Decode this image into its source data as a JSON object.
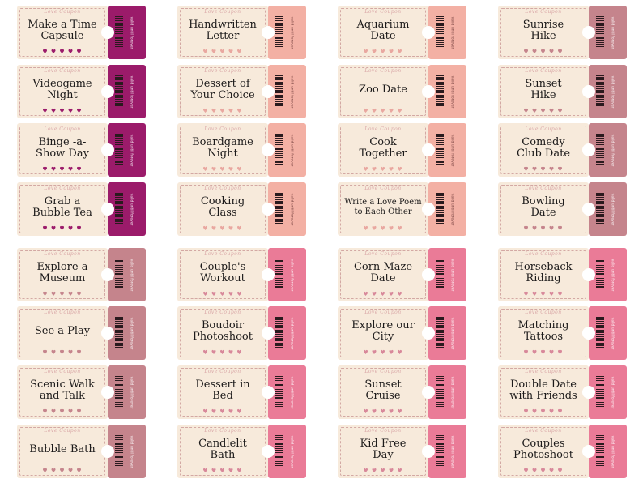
{
  "brand_text": "Love Coupon",
  "valid_text": "valid until forever",
  "hearts_text": "♥ ♥ ♥ ♥ ♥",
  "colors": {
    "magenta": "#9b1b6a",
    "salmon": "#f3b0a4",
    "mauve": "#c5848c",
    "pink": "#ea7b97",
    "coupon_body": "#f7eadb"
  },
  "coupons": [
    {
      "title": "Make a Time\nCapsule",
      "stub": "magenta"
    },
    {
      "title": "Handwritten\nLetter",
      "stub": "salmon"
    },
    {
      "title": "Aquarium\nDate",
      "stub": "salmon"
    },
    {
      "title": "Sunrise\nHike",
      "stub": "mauve"
    },
    {
      "title": "Videogame\nNight",
      "stub": "magenta"
    },
    {
      "title": "Dessert of\nYour Choice",
      "stub": "salmon"
    },
    {
      "title": "Zoo Date",
      "stub": "salmon"
    },
    {
      "title": "Sunset\nHike",
      "stub": "mauve"
    },
    {
      "title": "Binge -a-\nShow Day",
      "stub": "magenta"
    },
    {
      "title": "Boardgame\nNight",
      "stub": "salmon"
    },
    {
      "title": "Cook\nTogether",
      "stub": "salmon"
    },
    {
      "title": "Comedy\nClub Date",
      "stub": "mauve"
    },
    {
      "title": "Grab a\nBubble Tea",
      "stub": "magenta"
    },
    {
      "title": "Cooking\nClass",
      "stub": "salmon"
    },
    {
      "title": "Write a Love Poem\nto Each Other",
      "stub": "salmon",
      "small": true
    },
    {
      "title": "Bowling\nDate",
      "stub": "mauve"
    },
    {
      "title": "Explore a\nMuseum",
      "stub": "mauve"
    },
    {
      "title": "Couple's\nWorkout",
      "stub": "pink"
    },
    {
      "title": "Corn Maze\nDate",
      "stub": "pink"
    },
    {
      "title": "Horseback\nRiding",
      "stub": "pink"
    },
    {
      "title": "See a Play",
      "stub": "mauve"
    },
    {
      "title": "Boudoir\nPhotoshoot",
      "stub": "pink"
    },
    {
      "title": "Explore our\nCity",
      "stub": "pink"
    },
    {
      "title": "Matching\nTattoos",
      "stub": "pink"
    },
    {
      "title": "Scenic Walk\nand Talk",
      "stub": "mauve"
    },
    {
      "title": "Dessert in\nBed",
      "stub": "pink"
    },
    {
      "title": "Sunset\nCruise",
      "stub": "pink"
    },
    {
      "title": "Double Date\nwith Friends",
      "stub": "pink"
    },
    {
      "title": "Bubble Bath",
      "stub": "mauve"
    },
    {
      "title": "Candlelit\nBath",
      "stub": "pink"
    },
    {
      "title": "Kid Free\nDay",
      "stub": "pink"
    },
    {
      "title": "Couples\nPhotoshoot",
      "stub": "pink"
    }
  ]
}
